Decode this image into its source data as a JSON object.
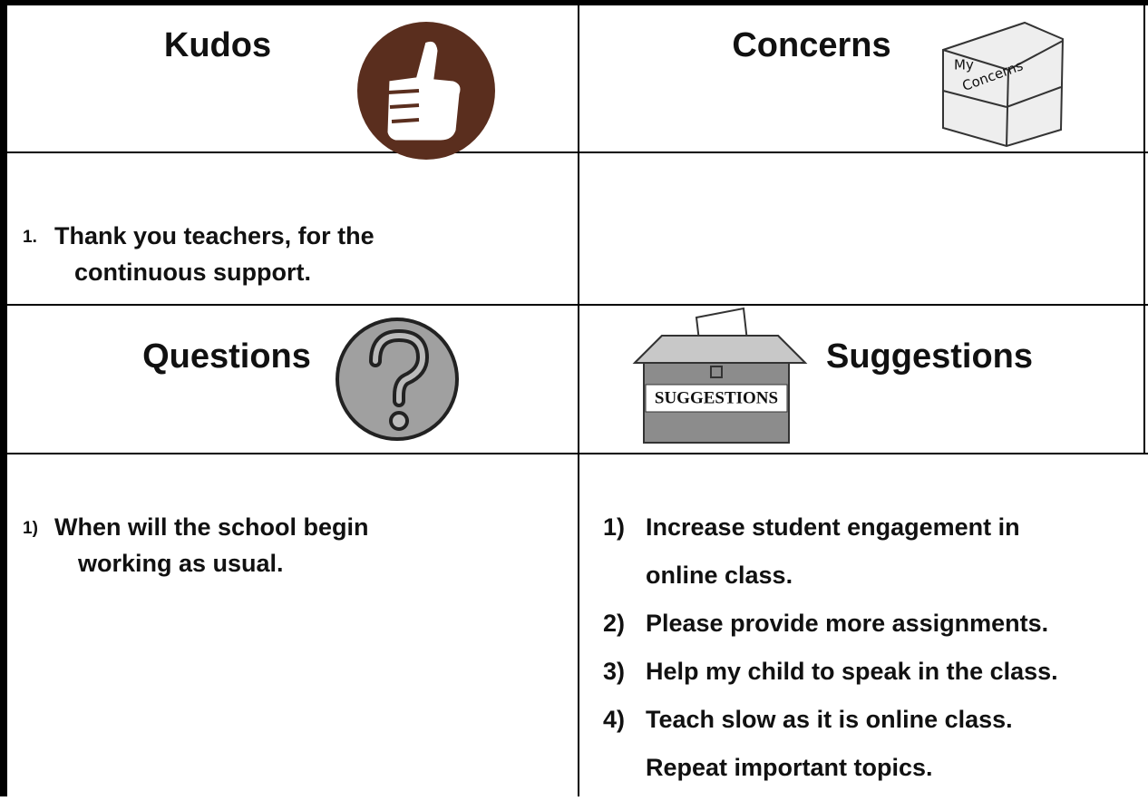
{
  "sections": [
    {
      "title": "Kudos",
      "items": [
        {
          "marker": "1.",
          "lines": [
            "Thank you teachers, for the",
            "continuous support."
          ]
        }
      ]
    },
    {
      "title": "Concerns",
      "icon_text": [
        "My",
        "Concerns"
      ],
      "items": []
    },
    {
      "title": "Questions",
      "items": [
        {
          "marker": "1)",
          "lines": [
            "When will the school begin",
            "working as usual."
          ]
        }
      ]
    },
    {
      "title": "Suggestions",
      "icon_text": [
        "SUGGESTIONS"
      ],
      "items": [
        {
          "marker": "1)",
          "lines": [
            "Increase student engagement in",
            "online class."
          ]
        },
        {
          "marker": "2)",
          "lines": [
            " Please provide more assignments."
          ]
        },
        {
          "marker": "3)",
          "lines": [
            "Help my child to speak in the class."
          ]
        },
        {
          "marker": "4)",
          "lines": [
            "Teach slow as it is online class.",
            "Repeat important topics."
          ]
        }
      ]
    }
  ]
}
